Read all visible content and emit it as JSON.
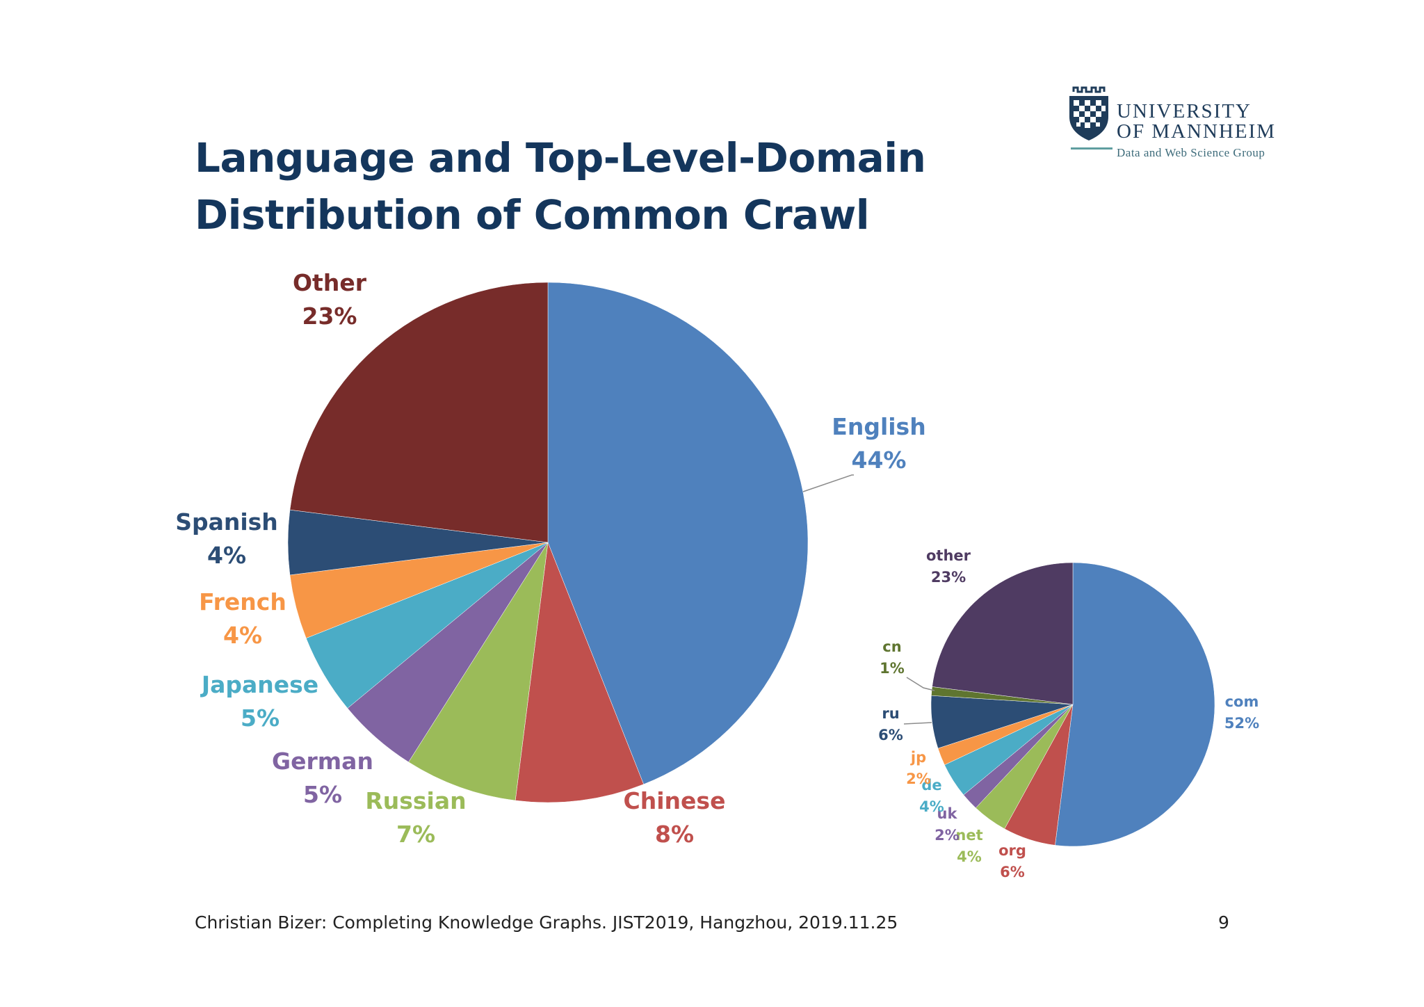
{
  "slide": {
    "title_line1": "Language and Top-Level-Domain",
    "title_line2": "Distribution of Common Crawl",
    "footer": "Christian Bizer: Completing Knowledge Graphs. JIST2019, Hangzhou, 2019.11.25",
    "page_number": "9"
  },
  "logo": {
    "line1": "UNIVERSITY",
    "line2": "OF MANNHEIM",
    "subtitle": "Data and Web Science Group"
  },
  "chart_data": [
    {
      "type": "pie",
      "title": "",
      "start": "12 o'clock, clockwise",
      "slices": [
        {
          "label": "English",
          "value": 44,
          "value_label": "44%",
          "color": "#4f81bd"
        },
        {
          "label": "Chinese",
          "value": 8,
          "value_label": "8%",
          "color": "#c0504d"
        },
        {
          "label": "Russian",
          "value": 7,
          "value_label": "7%",
          "color": "#9bbb59"
        },
        {
          "label": "German",
          "value": 5,
          "value_label": "5%",
          "color": "#8064a2"
        },
        {
          "label": "Japanese",
          "value": 5,
          "value_label": "5%",
          "color": "#4bacc6"
        },
        {
          "label": "French",
          "value": 4,
          "value_label": "4%",
          "color": "#f79646"
        },
        {
          "label": "Spanish",
          "value": 4,
          "value_label": "4%",
          "color": "#2c4d75"
        },
        {
          "label": "Other",
          "value": 23,
          "value_label": "23%",
          "color": "#772c2a"
        }
      ]
    },
    {
      "type": "pie",
      "title": "",
      "start": "12 o'clock, clockwise",
      "slices": [
        {
          "label": "com",
          "value": 52,
          "value_label": "52%",
          "color": "#4f81bd"
        },
        {
          "label": "org",
          "value": 6,
          "value_label": "6%",
          "color": "#c0504d"
        },
        {
          "label": "net",
          "value": 4,
          "value_label": "4%",
          "color": "#9bbb59"
        },
        {
          "label": "uk",
          "value": 2,
          "value_label": "2%",
          "color": "#8064a2"
        },
        {
          "label": "de",
          "value": 4,
          "value_label": "4%",
          "color": "#4bacc6"
        },
        {
          "label": "jp",
          "value": 2,
          "value_label": "2%",
          "color": "#f79646"
        },
        {
          "label": "ru",
          "value": 6,
          "value_label": "6%",
          "color": "#2c4d75"
        },
        {
          "label": "cn",
          "value": 1,
          "value_label": "1%",
          "color": "#5f7530"
        },
        {
          "label": "other",
          "value": 23,
          "value_label": "23%",
          "color": "#4f3b62"
        }
      ]
    }
  ]
}
